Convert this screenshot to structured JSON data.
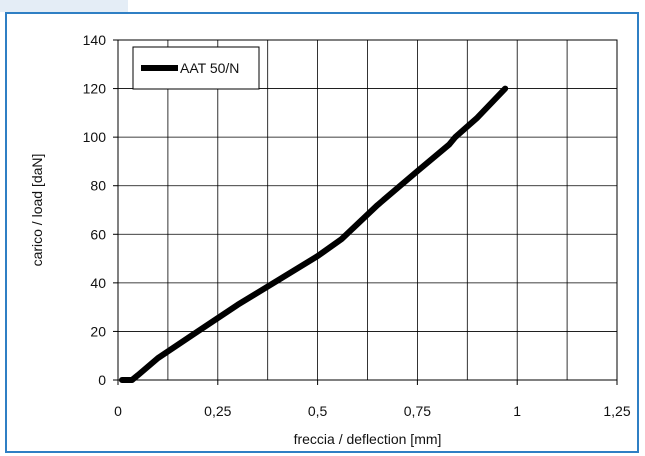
{
  "chart_data": {
    "type": "line",
    "xlabel": "freccia / deflection [mm]",
    "ylabel": "carico / load [daN]",
    "xlim": [
      0,
      1.25
    ],
    "ylim": [
      0,
      140
    ],
    "x_ticks": [
      "0",
      "0,25",
      "0,5",
      "0,75",
      "1",
      "1,25"
    ],
    "y_ticks": [
      "0",
      "20",
      "40",
      "60",
      "80",
      "100",
      "120",
      "140"
    ],
    "grid": true,
    "legend_position": "top-left",
    "series": [
      {
        "name": "AAT 50/N",
        "color": "#000000",
        "x": [
          0.01,
          0.035,
          0.05,
          0.1,
          0.2,
          0.3,
          0.4,
          0.5,
          0.56,
          0.65,
          0.75,
          0.83,
          0.845,
          0.9,
          0.97
        ],
        "y": [
          0,
          0,
          2,
          9,
          20,
          31,
          41,
          51,
          58,
          72,
          86,
          97,
          100,
          108,
          120
        ]
      }
    ]
  }
}
